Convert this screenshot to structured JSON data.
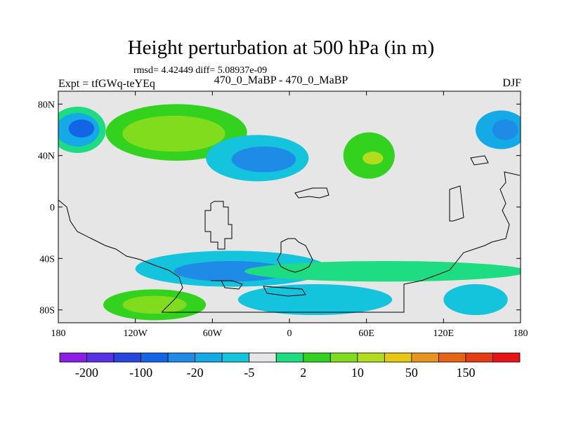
{
  "chart_data": {
    "type": "heatmap",
    "title": "Height perturbation at 500 hPa (in m)",
    "stats_text": "rmsd= 4.42449 diff= 5.08937e-09",
    "left_label": "Expt = tfGWq-teYEq",
    "center_label": "470_0_MaBP - 470_0_MaBP",
    "right_label": "DJF",
    "x_ticks": [
      "180",
      "120W",
      "60W",
      "0",
      "60E",
      "120E",
      "180"
    ],
    "y_ticks": [
      "80N",
      "40N",
      "0",
      "40S",
      "80S"
    ],
    "xlim": [
      -180,
      180
    ],
    "ylim": [
      -90,
      90
    ],
    "levels": [
      "-200",
      "-100",
      "-20",
      "-5",
      "2",
      "10",
      "50",
      "150"
    ],
    "colorbar_colors": [
      "#8c1ee6",
      "#5a32e6",
      "#2846dc",
      "#1464e6",
      "#1e8ce6",
      "#14aae6",
      "#14c3dc",
      "#e6e6e6",
      "#1edc82",
      "#32d21e",
      "#82dc1e",
      "#b4dc1e",
      "#e6c814",
      "#e6961e",
      "#e66414",
      "#e63c14",
      "#e61414"
    ],
    "contour_regions": [
      {
        "name": "arctic-pacific-low",
        "lon": -165,
        "lat": 60,
        "rlon": 22,
        "rlat": 18,
        "color": "#1edc82"
      },
      {
        "name": "arctic-pacific-low-mid",
        "lon": -165,
        "lat": 60,
        "rlon": 17,
        "rlat": 13,
        "color": "#14aae6"
      },
      {
        "name": "arctic-pacific-low-core",
        "lon": -162,
        "lat": 61,
        "rlon": 10,
        "rlat": 7,
        "color": "#1464e6"
      },
      {
        "name": "north-atlantic-high",
        "lon": -88,
        "lat": 58,
        "rlon": 55,
        "rlat": 22,
        "color": "#32d21e"
      },
      {
        "name": "north-atlantic-high-core",
        "lon": -90,
        "lat": 57,
        "rlon": 40,
        "rlat": 14,
        "color": "#82dc1e"
      },
      {
        "name": "eurasia-low",
        "lon": -25,
        "lat": 38,
        "rlon": 40,
        "rlat": 18,
        "color": "#14c3dc"
      },
      {
        "name": "eurasia-low-core",
        "lon": -20,
        "lat": 37,
        "rlon": 25,
        "rlat": 10,
        "color": "#1e8ce6"
      },
      {
        "name": "east-high",
        "lon": 62,
        "lat": 40,
        "rlon": 20,
        "rlat": 18,
        "color": "#32d21e"
      },
      {
        "name": "east-high-core",
        "lon": 65,
        "lat": 38,
        "rlon": 8,
        "rlat": 5,
        "color": "#b4dc1e"
      },
      {
        "name": "pacific-low",
        "lon": 165,
        "lat": 60,
        "rlon": 20,
        "rlat": 15,
        "color": "#14aae6"
      },
      {
        "name": "pacific-low-core",
        "lon": 168,
        "lat": 60,
        "rlon": 10,
        "rlat": 8,
        "color": "#1e8ce6"
      },
      {
        "name": "southern-trough-band",
        "lon": -45,
        "lat": -48,
        "rlon": 75,
        "rlat": 14,
        "color": "#14c3dc"
      },
      {
        "name": "southern-trough-core",
        "lon": -45,
        "lat": -50,
        "rlon": 45,
        "rlat": 8,
        "color": "#1e8ce6"
      },
      {
        "name": "southern-ridge-band",
        "lon": 75,
        "lat": -50,
        "rlon": 110,
        "rlat": 8,
        "color": "#1edc82"
      },
      {
        "name": "antarctic-high",
        "lon": -105,
        "lat": -76,
        "rlon": 40,
        "rlat": 12,
        "color": "#32d21e"
      },
      {
        "name": "antarctic-high-core",
        "lon": -105,
        "lat": -76,
        "rlon": 25,
        "rlat": 7,
        "color": "#82dc1e"
      },
      {
        "name": "antarctic-low",
        "lon": 20,
        "lat": -72,
        "rlon": 60,
        "rlat": 12,
        "color": "#14c3dc"
      },
      {
        "name": "antarctic-low-east",
        "lon": 145,
        "lat": -72,
        "rlon": 25,
        "rlat": 12,
        "color": "#14c3dc"
      }
    ]
  }
}
